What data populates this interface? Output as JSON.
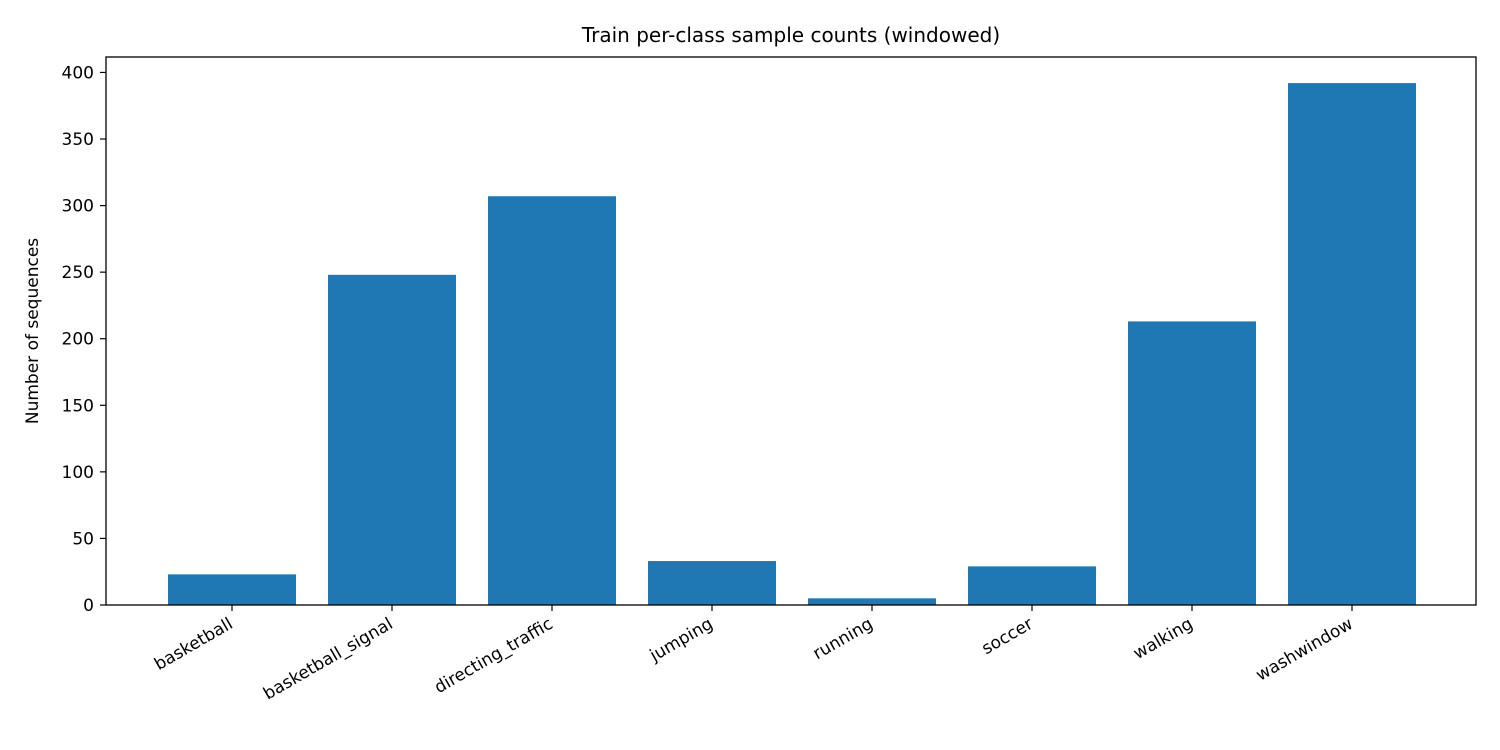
{
  "chart_data": {
    "type": "bar",
    "title": "Train per-class sample counts (windowed)",
    "xlabel": "",
    "ylabel": "Number of sequences",
    "categories": [
      "basketball",
      "basketball_signal",
      "directing_traffic",
      "jumping",
      "running",
      "soccer",
      "walking",
      "washwindow"
    ],
    "values": [
      23,
      248,
      307,
      33,
      5,
      29,
      213,
      392
    ],
    "ylim": [
      0,
      411.6
    ],
    "yticks": [
      0,
      50,
      100,
      150,
      200,
      250,
      300,
      350,
      400
    ],
    "bar_color": "#1f77b4",
    "grid": false,
    "legend": "none"
  }
}
